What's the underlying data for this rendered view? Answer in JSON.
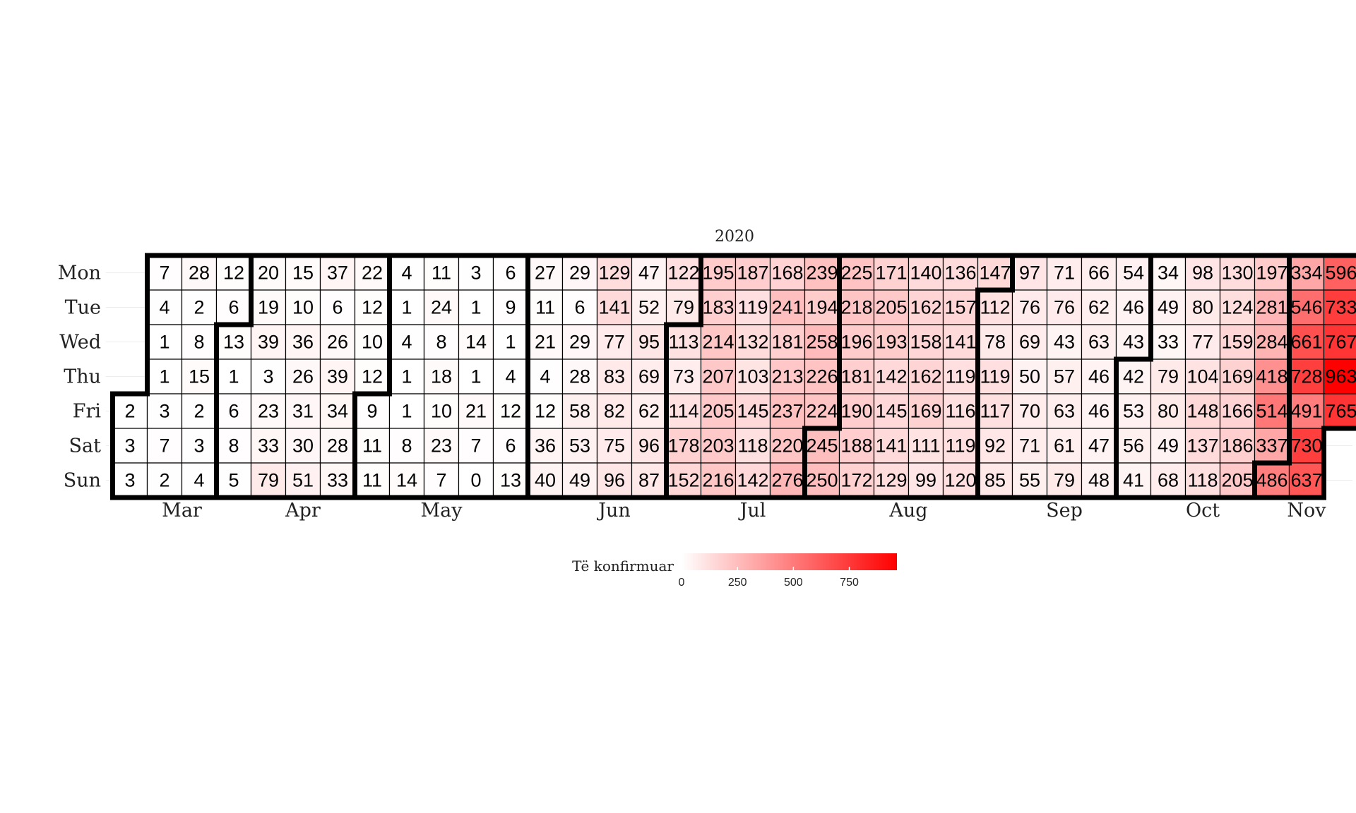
{
  "chart_data": {
    "type": "heatmap",
    "title": "2020",
    "weekdays": [
      "Mon",
      "Tue",
      "Wed",
      "Thu",
      "Fri",
      "Sat",
      "Sun"
    ],
    "months": [
      "Mar",
      "Apr",
      "May",
      "Jun",
      "Jul",
      "Aug",
      "Sep",
      "Oct",
      "Nov"
    ],
    "first_date": "2020-03-13",
    "values": [
      2,
      3,
      3,
      7,
      4,
      1,
      1,
      3,
      7,
      2,
      28,
      2,
      8,
      15,
      2,
      3,
      4,
      12,
      6,
      13,
      1,
      6,
      8,
      5,
      20,
      19,
      39,
      3,
      23,
      33,
      79,
      15,
      10,
      36,
      26,
      31,
      30,
      51,
      37,
      6,
      26,
      39,
      34,
      28,
      33,
      22,
      12,
      10,
      12,
      9,
      11,
      11,
      4,
      1,
      4,
      1,
      1,
      8,
      14,
      11,
      24,
      8,
      18,
      10,
      23,
      7,
      3,
      1,
      14,
      1,
      21,
      7,
      0,
      6,
      9,
      1,
      4,
      12,
      6,
      13,
      27,
      11,
      21,
      4,
      12,
      36,
      40,
      29,
      6,
      29,
      28,
      58,
      53,
      49,
      129,
      141,
      77,
      83,
      82,
      75,
      96,
      47,
      52,
      95,
      69,
      62,
      96,
      87,
      122,
      79,
      113,
      73,
      114,
      178,
      152,
      195,
      183,
      214,
      207,
      205,
      203,
      216,
      187,
      119,
      132,
      103,
      145,
      118,
      142,
      168,
      241,
      181,
      213,
      237,
      220,
      276,
      239,
      194,
      258,
      226,
      224,
      245,
      250,
      225,
      218,
      196,
      181,
      190,
      188,
      172,
      171,
      205,
      193,
      142,
      145,
      141,
      129,
      140,
      162,
      158,
      162,
      169,
      111,
      99,
      136,
      157,
      141,
      119,
      116,
      119,
      120,
      147,
      112,
      78,
      119,
      117,
      92,
      85,
      97,
      76,
      69,
      50,
      70,
      71,
      55,
      71,
      76,
      43,
      57,
      63,
      61,
      79,
      66,
      62,
      63,
      46,
      46,
      47,
      48,
      54,
      46,
      43,
      42,
      53,
      56,
      41,
      34,
      49,
      33,
      79,
      80,
      49,
      68,
      98,
      80,
      77,
      104,
      148,
      137,
      118,
      130,
      124,
      159,
      169,
      166,
      186,
      205,
      197,
      281,
      284,
      418,
      514,
      337,
      486,
      334,
      546,
      661,
      728,
      491,
      730,
      637,
      596,
      733,
      767,
      963,
      765
    ],
    "legend": {
      "title": "Të konfirmuar",
      "ticks": [
        0,
        250,
        500,
        750
      ],
      "min": 0,
      "max": 963,
      "color_low": "#ffffff",
      "color_high": "#ff0000"
    }
  }
}
